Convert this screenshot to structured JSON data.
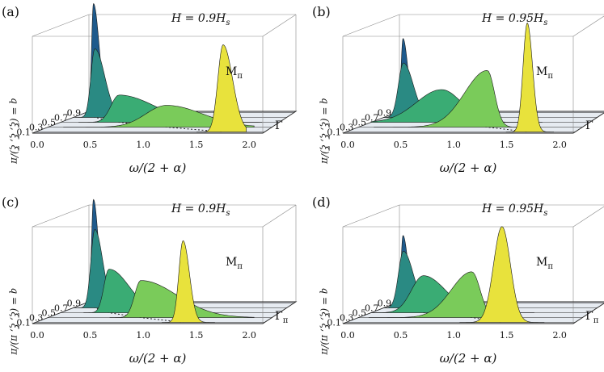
{
  "figure": {
    "panels": [
      {
        "tag": "(a)",
        "field": "H = 0.9H",
        "field_sub": "s",
        "point_label": "M",
        "point_sub": "π",
        "gamma_label": "Γ",
        "gamma_sub": "",
        "ylabel": "q = (ξ, ξ, ξ)/π",
        "xlabel": "ω/(2 + α)",
        "xticks": [
          "0.0",
          "0.5",
          "1.0",
          "1.5",
          "2.0"
        ],
        "qticks": [
          "0.9",
          "0.7",
          "0.5",
          "0.3",
          "0.1"
        ],
        "peaks": [
          {
            "q": 0.9,
            "w": 0.08,
            "h": 1.0,
            "wl": 0.02,
            "wr": 0.06,
            "color": "#1e5a8c"
          },
          {
            "q": 0.7,
            "w": 0.22,
            "h": 0.63,
            "wl": 0.04,
            "wr": 0.1,
            "color": "#2a8a83"
          },
          {
            "q": 0.5,
            "w": 0.58,
            "h": 0.25,
            "wl": 0.08,
            "wr": 0.35,
            "color": "#3aac74"
          },
          {
            "q": 0.3,
            "w": 1.15,
            "h": 0.2,
            "wl": 0.2,
            "wr": 0.35,
            "color": "#7acb5a"
          },
          {
            "q": 0.1,
            "w": 1.78,
            "h": 0.8,
            "wl": 0.05,
            "wr": 0.09,
            "color": "#e8e23c"
          }
        ]
      },
      {
        "tag": "(b)",
        "field": "H = 0.95H",
        "field_sub": "s",
        "point_label": "M",
        "point_sub": "π",
        "gamma_label": "Γ",
        "gamma_sub": "",
        "ylabel": "q = (ξ, ξ, ξ)/π",
        "xlabel": "ω/(2 + α)",
        "xticks": [
          "0.0",
          "0.5",
          "1.0",
          "1.5",
          "2.0"
        ],
        "qticks": [
          "0.9",
          "0.7",
          "0.5",
          "0.3",
          "0.1"
        ],
        "peaks": [
          {
            "q": 0.9,
            "w": 0.07,
            "h": 0.68,
            "wl": 0.02,
            "wr": 0.05,
            "color": "#1e5a8c"
          },
          {
            "q": 0.7,
            "w": 0.2,
            "h": 0.5,
            "wl": 0.05,
            "wr": 0.1,
            "color": "#2a8a83"
          },
          {
            "q": 0.5,
            "w": 0.7,
            "h": 0.3,
            "wl": 0.25,
            "wr": 0.2,
            "color": "#3aac74"
          },
          {
            "q": 0.3,
            "w": 1.25,
            "h": 0.52,
            "wl": 0.22,
            "wr": 0.07,
            "color": "#7acb5a"
          },
          {
            "q": 0.1,
            "w": 1.72,
            "h": 1.0,
            "wl": 0.04,
            "wr": 0.05,
            "color": "#e8e23c"
          }
        ]
      },
      {
        "tag": "(c)",
        "field": "H = 0.9H",
        "field_sub": "s",
        "point_label": "M",
        "point_sub": "π",
        "gamma_label": "Γ",
        "gamma_sub": "π",
        "ylabel": "q = (ξ, ξ, π)/π",
        "xlabel": "ω/(2 + α)",
        "xticks": [
          "0.0",
          "0.5",
          "1.0",
          "1.5",
          "2.0"
        ],
        "qticks": [
          "0.9",
          "0.7",
          "0.5",
          "0.3",
          "0.1"
        ],
        "peaks": [
          {
            "q": 0.9,
            "w": 0.08,
            "h": 0.95,
            "wl": 0.02,
            "wr": 0.05,
            "color": "#1e5a8c"
          },
          {
            "q": 0.7,
            "w": 0.22,
            "h": 0.72,
            "wl": 0.04,
            "wr": 0.08,
            "color": "#2a8a83"
          },
          {
            "q": 0.5,
            "w": 0.48,
            "h": 0.4,
            "wl": 0.05,
            "wr": 0.2,
            "color": "#3aac74"
          },
          {
            "q": 0.3,
            "w": 0.9,
            "h": 0.34,
            "wl": 0.06,
            "wr": 0.35,
            "color": "#7acb5a"
          },
          {
            "q": 0.1,
            "w": 1.4,
            "h": 0.75,
            "wl": 0.04,
            "wr": 0.06,
            "color": "#e8e23c"
          }
        ]
      },
      {
        "tag": "(d)",
        "field": "H = 0.95H",
        "field_sub": "s",
        "point_label": "M",
        "point_sub": "π",
        "gamma_label": "Γ",
        "gamma_sub": "π",
        "ylabel": "q = (ξ, ξ, π)/π",
        "xlabel": "ω/(2 + α)",
        "xticks": [
          "0.0",
          "0.5",
          "1.0",
          "1.5",
          "2.0"
        ],
        "qticks": [
          "0.9",
          "0.7",
          "0.5",
          "0.3",
          "0.1"
        ],
        "peaks": [
          {
            "q": 0.9,
            "w": 0.07,
            "h": 0.62,
            "wl": 0.02,
            "wr": 0.05,
            "color": "#1e5a8c"
          },
          {
            "q": 0.7,
            "w": 0.2,
            "h": 0.52,
            "wl": 0.05,
            "wr": 0.1,
            "color": "#2a8a83"
          },
          {
            "q": 0.5,
            "w": 0.52,
            "h": 0.34,
            "wl": 0.12,
            "wr": 0.22,
            "color": "#3aac74"
          },
          {
            "q": 0.3,
            "w": 1.1,
            "h": 0.42,
            "wl": 0.2,
            "wr": 0.08,
            "color": "#7acb5a"
          },
          {
            "q": 0.1,
            "w": 1.48,
            "h": 0.88,
            "wl": 0.08,
            "wr": 0.08,
            "color": "#e8e23c"
          }
        ]
      }
    ]
  },
  "chart_data": [
    {
      "type": "area",
      "title": "H = 0.9Hs",
      "xlabel": "ω/(2 + α)",
      "ylabel": "q = (ξ, ξ, ξ)/π",
      "xlim": [
        0,
        2
      ],
      "q_values": [
        0.9,
        0.7,
        0.5,
        0.3,
        0.1
      ]
    },
    {
      "type": "area",
      "title": "H = 0.95Hs",
      "xlabel": "ω/(2 + α)",
      "ylabel": "q = (ξ, ξ, ξ)/π",
      "xlim": [
        0,
        2
      ],
      "q_values": [
        0.9,
        0.7,
        0.5,
        0.3,
        0.1
      ]
    },
    {
      "type": "area",
      "title": "H = 0.9Hs",
      "xlabel": "ω/(2 + α)",
      "ylabel": "q = (ξ, ξ, π)/π",
      "xlim": [
        0,
        2
      ],
      "q_values": [
        0.9,
        0.7,
        0.5,
        0.3,
        0.1
      ]
    },
    {
      "type": "area",
      "title": "H = 0.95Hs",
      "xlabel": "ω/(2 + α)",
      "ylabel": "q = (ξ, ξ, π)/π",
      "xlim": [
        0,
        2
      ],
      "q_values": [
        0.9,
        0.7,
        0.5,
        0.3,
        0.1
      ]
    }
  ]
}
